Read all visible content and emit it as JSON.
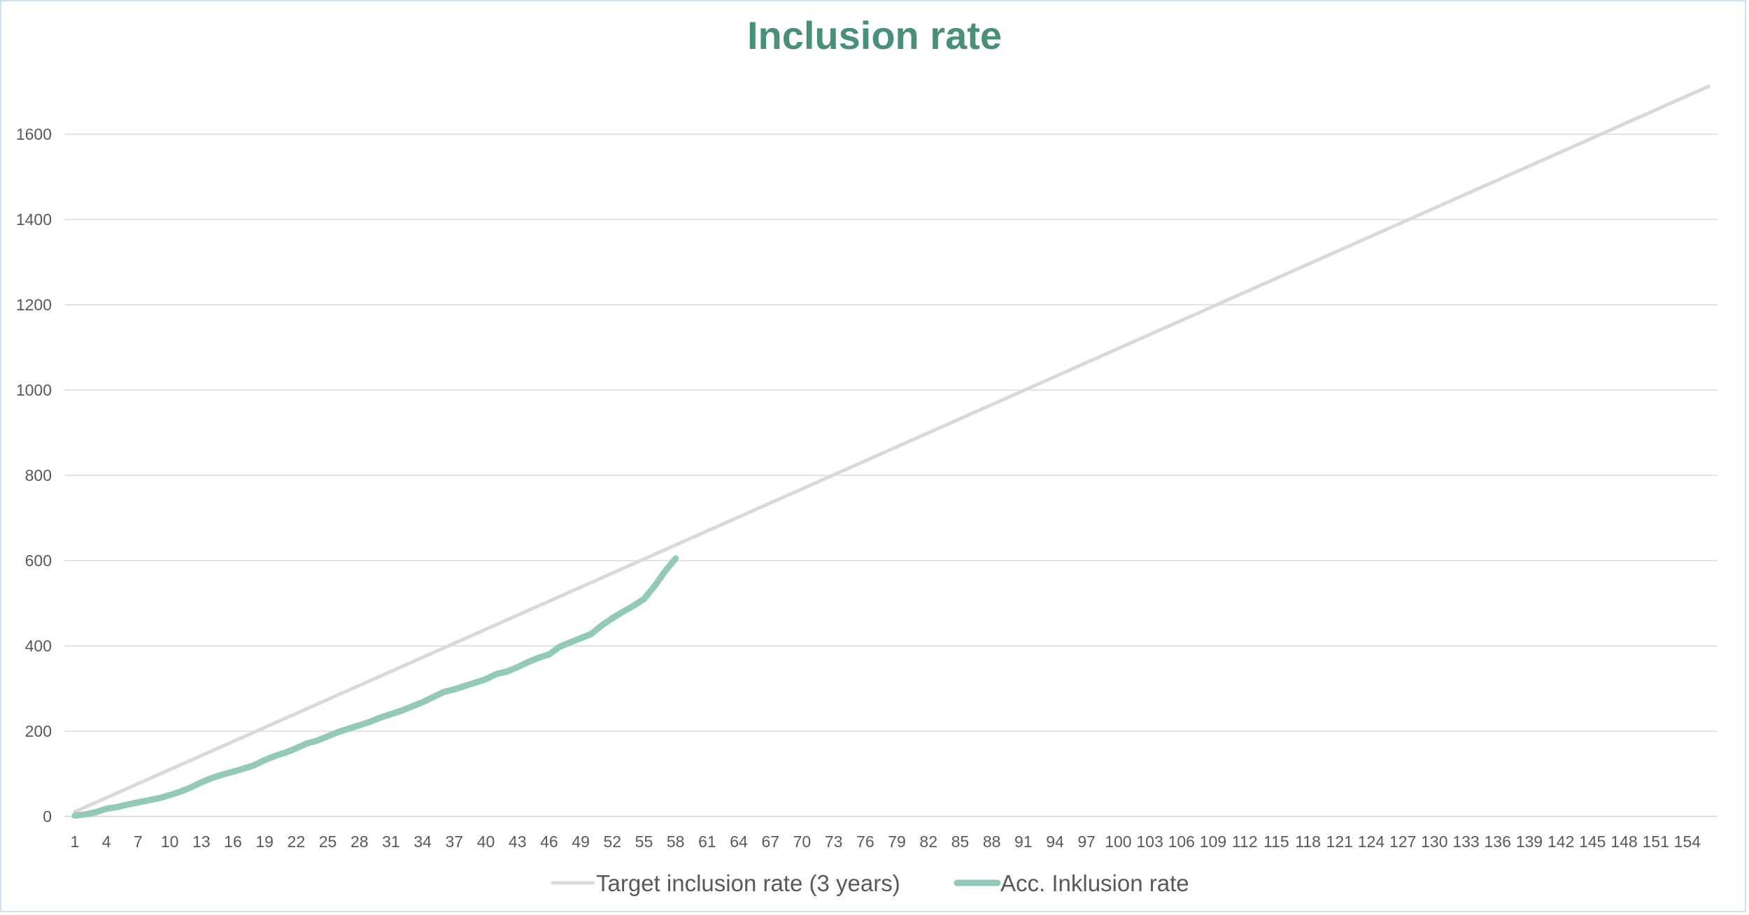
{
  "chart_data": {
    "type": "line",
    "title": "Inclusion rate",
    "xlabel": "",
    "ylabel": "",
    "ylim": [
      0,
      1700
    ],
    "yticks": [
      0,
      200,
      400,
      600,
      800,
      1000,
      1200,
      1400,
      1600
    ],
    "x_min": 1,
    "x_max": 156,
    "xtick_labels": [
      1,
      4,
      7,
      10,
      13,
      16,
      19,
      22,
      25,
      28,
      31,
      34,
      37,
      40,
      43,
      46,
      49,
      52,
      55,
      58,
      61,
      64,
      67,
      70,
      73,
      76,
      79,
      82,
      85,
      88,
      91,
      94,
      97,
      100,
      103,
      106,
      109,
      112,
      115,
      118,
      121,
      124,
      127,
      130,
      133,
      136,
      139,
      142,
      145,
      148,
      151,
      154
    ],
    "grid": true,
    "legend_position": "bottom",
    "series": [
      {
        "name": "Target inclusion rate (3 years)",
        "color": "#d9d9d9",
        "x": [
          1,
          156
        ],
        "values": [
          11,
          1712
        ]
      },
      {
        "name": "Acc. Inklusion rate",
        "color": "#93c9b8",
        "x": [
          1,
          2,
          3,
          4,
          5,
          6,
          7,
          8,
          9,
          10,
          11,
          12,
          13,
          14,
          15,
          16,
          17,
          18,
          19,
          20,
          21,
          22,
          23,
          24,
          25,
          26,
          27,
          28,
          29,
          30,
          31,
          32,
          33,
          34,
          35,
          36,
          37,
          38,
          39,
          40,
          41,
          42,
          43,
          44,
          45,
          46,
          47,
          48,
          49,
          50,
          51,
          52,
          53,
          54,
          55,
          56,
          57,
          58
        ],
        "values": [
          2,
          5,
          10,
          18,
          22,
          28,
          33,
          38,
          43,
          50,
          58,
          68,
          80,
          90,
          98,
          105,
          112,
          120,
          132,
          142,
          150,
          160,
          171,
          178,
          188,
          198,
          206,
          214,
          222,
          232,
          240,
          248,
          258,
          268,
          280,
          292,
          298,
          306,
          314,
          322,
          334,
          340,
          350,
          362,
          372,
          380,
          398,
          408,
          418,
          428,
          448,
          465,
          480,
          494,
          510,
          540,
          575,
          605
        ]
      }
    ]
  }
}
